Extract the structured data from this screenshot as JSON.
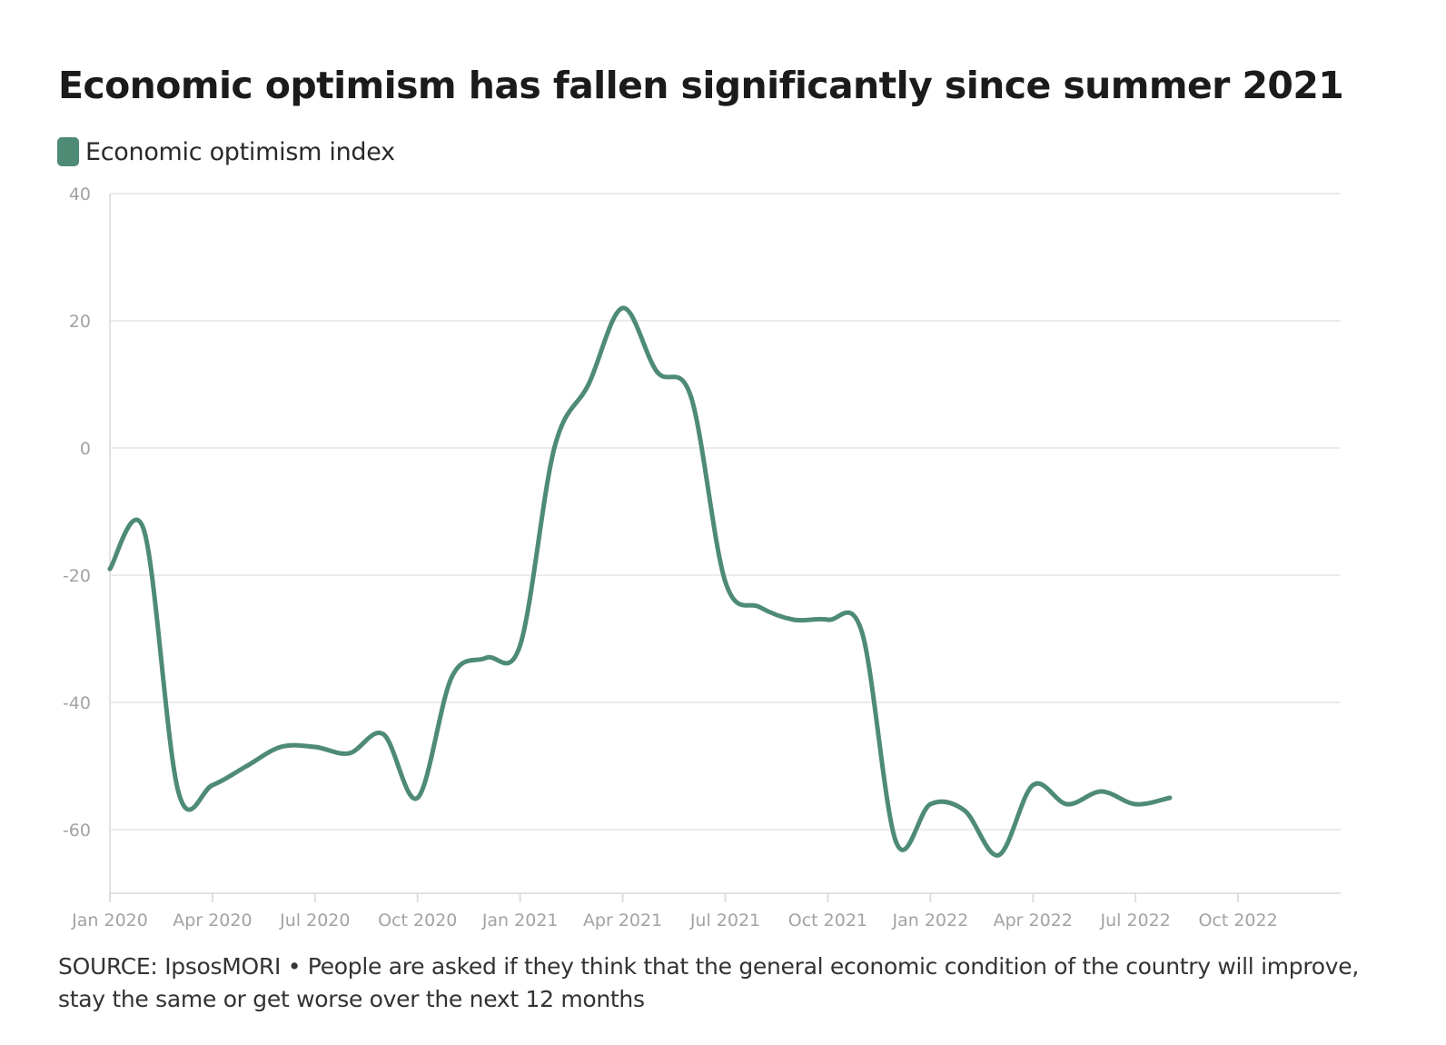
{
  "chart_data": {
    "type": "line",
    "title": "Economic optimism has fallen significantly since summer 2021",
    "xlabel": "",
    "ylabel": "",
    "ylim": [
      -70,
      40
    ],
    "xlim": [
      "2020-01",
      "2023-01"
    ],
    "yticks": [
      40,
      20,
      0,
      -20,
      -40,
      -60
    ],
    "xticks": [
      {
        "date": "2020-01",
        "label": "Jan 2020"
      },
      {
        "date": "2020-04",
        "label": "Apr 2020"
      },
      {
        "date": "2020-07",
        "label": "Jul 2020"
      },
      {
        "date": "2020-10",
        "label": "Oct 2020"
      },
      {
        "date": "2021-01",
        "label": "Jan 2021"
      },
      {
        "date": "2021-04",
        "label": "Apr 2021"
      },
      {
        "date": "2021-07",
        "label": "Jul 2021"
      },
      {
        "date": "2021-10",
        "label": "Oct 2021"
      },
      {
        "date": "2022-01",
        "label": "Jan 2022"
      },
      {
        "date": "2022-04",
        "label": "Apr 2022"
      },
      {
        "date": "2022-07",
        "label": "Jul 2022"
      },
      {
        "date": "2022-10",
        "label": "Oct 2022"
      }
    ],
    "grid": true,
    "legend_position": "top-left",
    "series": [
      {
        "name": "Economic optimism index",
        "color": "#4e8b75",
        "points": [
          {
            "x": "2020-01",
            "y": -19
          },
          {
            "x": "2020-02",
            "y": -13
          },
          {
            "x": "2020-03",
            "y": -54
          },
          {
            "x": "2020-04",
            "y": -53
          },
          {
            "x": "2020-05",
            "y": -50
          },
          {
            "x": "2020-06",
            "y": -47
          },
          {
            "x": "2020-07",
            "y": -47
          },
          {
            "x": "2020-08",
            "y": -48
          },
          {
            "x": "2020-09",
            "y": -45
          },
          {
            "x": "2020-10",
            "y": -55
          },
          {
            "x": "2020-11",
            "y": -36
          },
          {
            "x": "2020-12",
            "y": -33
          },
          {
            "x": "2021-01",
            "y": -31
          },
          {
            "x": "2021-02",
            "y": 0
          },
          {
            "x": "2021-03",
            "y": 10
          },
          {
            "x": "2021-04",
            "y": 22
          },
          {
            "x": "2021-05",
            "y": 12
          },
          {
            "x": "2021-06",
            "y": 8
          },
          {
            "x": "2021-07",
            "y": -21
          },
          {
            "x": "2021-08",
            "y": -25
          },
          {
            "x": "2021-09",
            "y": -27
          },
          {
            "x": "2021-10",
            "y": -27
          },
          {
            "x": "2021-11",
            "y": -29
          },
          {
            "x": "2021-12",
            "y": -62
          },
          {
            "x": "2022-01",
            "y": -56
          },
          {
            "x": "2022-02",
            "y": -57
          },
          {
            "x": "2022-03",
            "y": -64
          },
          {
            "x": "2022-04",
            "y": -53
          },
          {
            "x": "2022-05",
            "y": -56
          },
          {
            "x": "2022-06",
            "y": -54
          },
          {
            "x": "2022-07",
            "y": -56
          },
          {
            "x": "2022-08",
            "y": -55
          }
        ]
      }
    ],
    "source": "SOURCE: IpsosMORI • People are asked if they think that the general economic condition of the country will improve, stay the same or get worse over the next 12 months"
  }
}
